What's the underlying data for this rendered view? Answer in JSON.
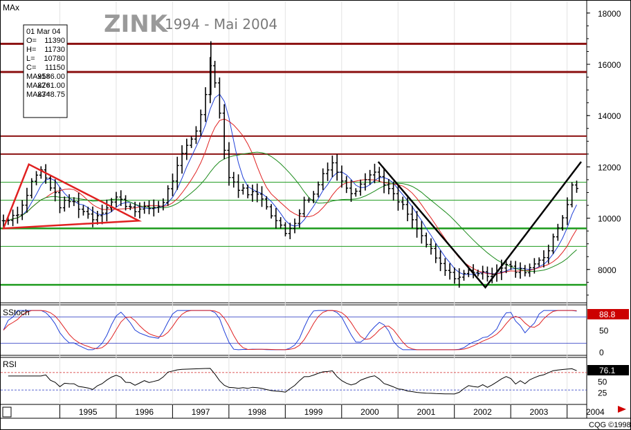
{
  "header": {
    "title": "ZINK",
    "subtitle": "1994 - Mai 2004",
    "main_panel_label": "MAx",
    "stoch_label": "SStoch",
    "rsi_label": "RSI",
    "copyright": "CQG ©1998"
  },
  "infobox": {
    "date": "01 Mar 04",
    "rows": [
      {
        "k": "O=",
        "v": "11390"
      },
      {
        "k": "H=",
        "v": "11730"
      },
      {
        "k": "L=",
        "v": "10780"
      },
      {
        "k": "C=",
        "v": "11150"
      },
      {
        "k": "MAx1=",
        "v": "9586.00"
      },
      {
        "k": "MAx2=",
        "v": "8761.00"
      },
      {
        "k": "MAx3=",
        "v": "8748.75"
      }
    ]
  },
  "colors": {
    "bars": "#000000",
    "ma_fast": "#1f3fd8",
    "ma_mid": "#e02020",
    "ma_slow": "#1a8a1a",
    "resistance": "#8b1010",
    "support": "#1a9a1a",
    "triangle": "#e02020",
    "v_pattern": "#000000",
    "badge": "#cc0000"
  },
  "chart_data": [
    {
      "type": "ohlc",
      "panel": "price",
      "x_tick_labels": [
        "1995",
        "1996",
        "1997",
        "1998",
        "1999",
        "2000",
        "2001",
        "2002",
        "2003",
        "2004"
      ],
      "y_ticks": [
        8000,
        10000,
        12000,
        14000,
        16000,
        18000
      ],
      "ylim": [
        6700,
        18400
      ],
      "x_range": [
        1994.0,
        2004.25
      ],
      "price_path": [
        [
          1994.0,
          9900
        ],
        [
          1994.3,
          10300
        ],
        [
          1994.5,
          11400
        ],
        [
          1994.65,
          11900
        ],
        [
          1994.85,
          11200
        ],
        [
          1995.0,
          10500
        ],
        [
          1995.2,
          10700
        ],
        [
          1995.4,
          10300
        ],
        [
          1995.6,
          10000
        ],
        [
          1995.8,
          10400
        ],
        [
          1996.0,
          10800
        ],
        [
          1996.2,
          10500
        ],
        [
          1996.4,
          10300
        ],
        [
          1996.6,
          10400
        ],
        [
          1996.8,
          10500
        ],
        [
          1997.0,
          11500
        ],
        [
          1997.2,
          12600
        ],
        [
          1997.4,
          13300
        ],
        [
          1997.6,
          14900
        ],
        [
          1997.68,
          16200
        ],
        [
          1997.76,
          15300
        ],
        [
          1997.9,
          13000
        ],
        [
          1998.0,
          11600
        ],
        [
          1998.2,
          11100
        ],
        [
          1998.4,
          11000
        ],
        [
          1998.6,
          10800
        ],
        [
          1998.8,
          10000
        ],
        [
          1999.0,
          9400
        ],
        [
          1999.2,
          10000
        ],
        [
          1999.35,
          10700
        ],
        [
          1999.5,
          10900
        ],
        [
          1999.7,
          11900
        ],
        [
          1999.85,
          12200
        ],
        [
          2000.0,
          11400
        ],
        [
          2000.2,
          11000
        ],
        [
          2000.4,
          11600
        ],
        [
          2000.6,
          11800
        ],
        [
          2000.75,
          11400
        ],
        [
          2000.9,
          10900
        ],
        [
          2001.1,
          10400
        ],
        [
          2001.3,
          9700
        ],
        [
          2001.5,
          9000
        ],
        [
          2001.7,
          8300
        ],
        [
          2001.9,
          7800
        ],
        [
          2002.1,
          7700
        ],
        [
          2002.3,
          8000
        ],
        [
          2002.5,
          7800
        ],
        [
          2002.7,
          7900
        ],
        [
          2002.9,
          8200
        ],
        [
          2003.1,
          7900
        ],
        [
          2003.3,
          8000
        ],
        [
          2003.5,
          8400
        ],
        [
          2003.7,
          8800
        ],
        [
          2003.8,
          9500
        ],
        [
          2003.9,
          9900
        ],
        [
          2004.0,
          10600
        ],
        [
          2004.1,
          11300
        ],
        [
          2004.17,
          11150
        ]
      ],
      "moving_averages": [
        {
          "name": "MAx1",
          "last": 9586.0
        },
        {
          "name": "MAx2",
          "last": 8761.0
        },
        {
          "name": "MAx3",
          "last": 8748.75
        }
      ],
      "resistance_levels": [
        16800,
        15700,
        13200,
        12500
      ],
      "support_levels": [
        11400,
        10700,
        9600,
        8900,
        7400
      ],
      "patterns": {
        "triangle": [
          [
            1994.0,
            9600
          ],
          [
            1994.45,
            12100
          ],
          [
            1996.4,
            9900
          ]
        ],
        "v": [
          [
            2000.65,
            12200
          ],
          [
            2002.55,
            7300
          ],
          [
            2004.25,
            12200
          ]
        ]
      }
    },
    {
      "type": "line",
      "panel": "SStoch",
      "y_ticks": [
        0,
        50
      ],
      "last_value": 88.8
    },
    {
      "type": "line",
      "panel": "RSI",
      "y_ticks": [
        25,
        50
      ],
      "reference_levels": [
        70,
        30
      ],
      "last_value": 76.1
    }
  ]
}
